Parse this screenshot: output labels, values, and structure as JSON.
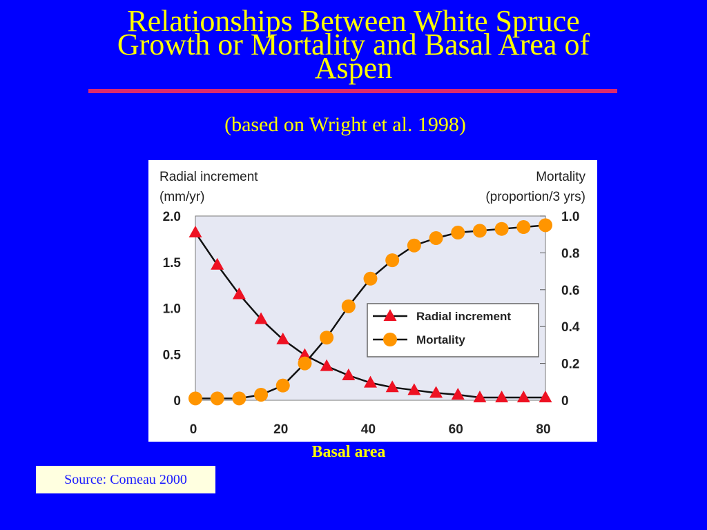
{
  "slide": {
    "title_line1": "Relationships Between White Spruce",
    "title_line2": "Growth or Mortality and Basal Area of",
    "title_line3": "Aspen",
    "subtitle": "(based on  Wright et al. 1998)",
    "source": "Source: Comeau 2000",
    "title_color": "#ffff00",
    "rule_color": "#dd2a6e",
    "background": "#0000ff"
  },
  "chart_data": {
    "type": "line",
    "xlabel": "Basal area",
    "x_ticks": [
      "0",
      "20",
      "40",
      "60",
      "80"
    ],
    "xlim": [
      0,
      80
    ],
    "left_axis": {
      "label_line1": "Radial increment",
      "label_line2": "(mm/yr)",
      "ylim": [
        0,
        2.0
      ],
      "ticks": [
        "2.0",
        "1.5",
        "1.0",
        "0.5",
        "0"
      ]
    },
    "right_axis": {
      "label_line1": "Mortality",
      "label_line2": "(proportion/3 yrs)",
      "ylim": [
        0,
        1.0
      ],
      "ticks": [
        "1.0",
        "0.8",
        "0.6",
        "0.4",
        "0.2",
        "0"
      ]
    },
    "legend_position": "center-right",
    "series": [
      {
        "name": "Radial increment",
        "axis": "left",
        "marker": "triangle",
        "color": "#ee1122",
        "x": [
          0,
          5,
          10,
          15,
          20,
          25,
          30,
          35,
          40,
          45,
          50,
          55,
          60,
          65,
          70,
          75,
          80
        ],
        "y": [
          1.82,
          1.47,
          1.15,
          0.88,
          0.66,
          0.49,
          0.37,
          0.27,
          0.19,
          0.14,
          0.11,
          0.08,
          0.06,
          0.03,
          0.03,
          0.03,
          0.03
        ]
      },
      {
        "name": "Mortality",
        "axis": "right",
        "marker": "circle",
        "color": "#ff9500",
        "x": [
          0,
          5,
          10,
          15,
          20,
          25,
          30,
          35,
          40,
          45,
          50,
          55,
          60,
          65,
          70,
          75,
          80
        ],
        "y": [
          0.01,
          0.01,
          0.01,
          0.03,
          0.08,
          0.2,
          0.34,
          0.51,
          0.66,
          0.76,
          0.84,
          0.88,
          0.91,
          0.92,
          0.93,
          0.94,
          0.95
        ]
      }
    ]
  }
}
